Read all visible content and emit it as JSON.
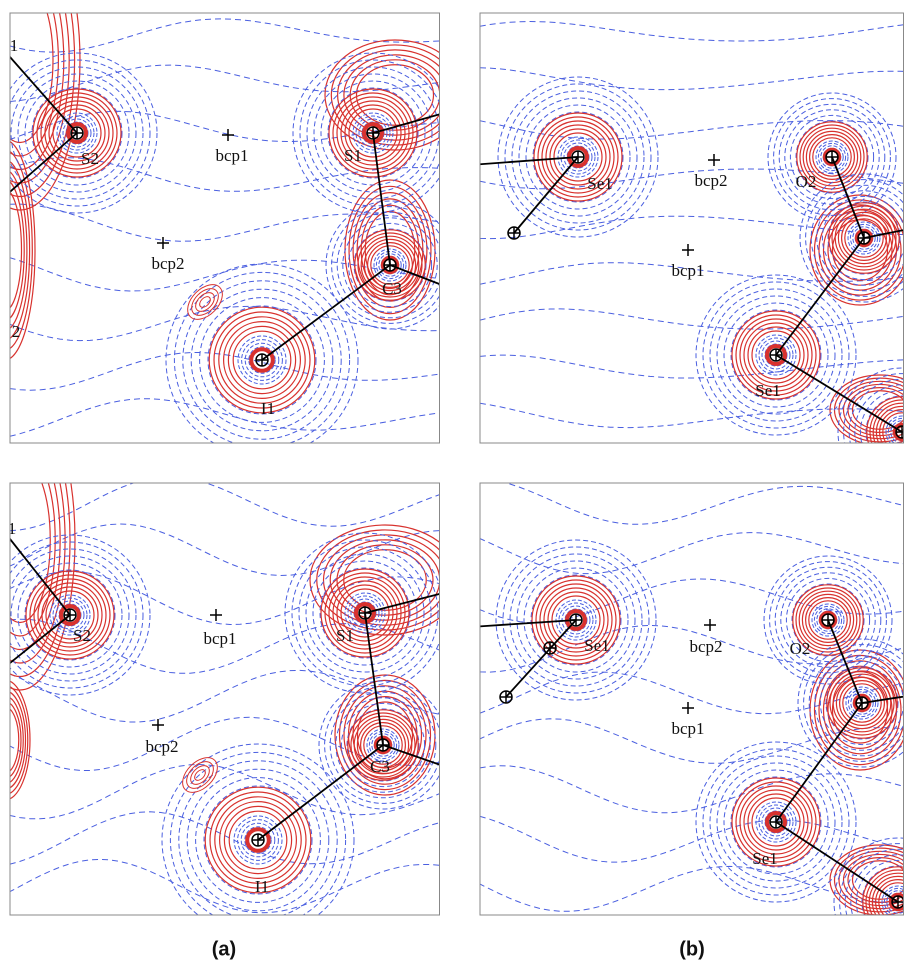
{
  "panels": [
    {
      "labels": [
        "1",
        "S2",
        "bcp1",
        "S1",
        "bcp2",
        "C3",
        "2",
        "I1"
      ]
    },
    {
      "labels": [
        "Se1",
        "bcp2",
        "O2",
        "bcp1",
        "Se1"
      ]
    },
    {
      "labels": [
        "1",
        "S2",
        "bcp1",
        "S1",
        "bcp2",
        "C3",
        "I1"
      ]
    },
    {
      "labels": [
        "Se1",
        "bcp2",
        "O2",
        "bcp1",
        "Se1"
      ]
    }
  ],
  "captions": [
    "(a)",
    "(b)"
  ]
}
